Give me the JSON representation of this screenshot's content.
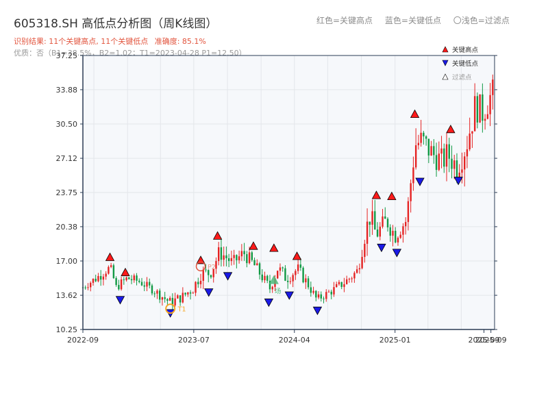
{
  "title": "605318.SH 高低点分析图（周K线图）",
  "header_legend": {
    "red": "红色=关键高点",
    "blue": "蓝色=关键低点",
    "light": "〇浅色=过滤点"
  },
  "subtitle1": {
    "result": "识别结果: 11个关键高点, 11个关键低点",
    "accuracy": "准确度: 85.1%"
  },
  "subtitle2": "优质：否（B1=38.5%，B2=1.02；T1=2023-04-28 P1=12.50）",
  "legend": {
    "high": "关键高点",
    "low": "关键低点",
    "filtered": "过滤点"
  },
  "colors": {
    "up": "#e52222",
    "down": "#119944",
    "high_marker": "#ff1a1a",
    "low_marker": "#1a1ae6",
    "plot_bg": "#f6f8fb",
    "grid": "#e3e6ea",
    "axis": "#2b3c55",
    "t1": "#f5a623",
    "p2": "#e2543d",
    "light_green": "#4cbb7a"
  },
  "chart_data": {
    "type": "candlestick",
    "period": "weekly",
    "y_ticks": [
      "10.25",
      "13.62",
      "17.00",
      "20.38",
      "23.75",
      "27.12",
      "30.50",
      "33.88",
      "37.25"
    ],
    "ylim": [
      10.25,
      37.25
    ],
    "x_ticks": [
      "2022-09",
      "2023-07",
      "2024-04",
      "2025-01",
      "2025-09",
      "2025-09"
    ],
    "xlim": [
      "2022-09-01",
      "2025-09-30"
    ],
    "legend_position": "top-right",
    "grid": true,
    "anchors": [
      [
        "2022-09-01",
        14.4,
        0.3
      ],
      [
        "2022-10-15",
        15.5,
        0.5
      ],
      [
        "2022-11-15",
        16.4,
        0.4
      ],
      [
        "2022-12-01",
        14.4,
        0.4
      ],
      [
        "2023-01-01",
        15.3,
        0.5
      ],
      [
        "2023-02-01",
        15.0,
        0.4
      ],
      [
        "2023-03-10",
        14.2,
        0.4
      ],
      [
        "2023-04-28",
        12.9,
        0.5
      ],
      [
        "2023-06-01",
        13.5,
        0.5
      ],
      [
        "2023-07-01",
        14.4,
        0.6
      ],
      [
        "2023-07-20",
        15.8,
        0.7
      ],
      [
        "2023-08-15",
        15.8,
        0.6
      ],
      [
        "2023-09-10",
        17.9,
        0.8
      ],
      [
        "2023-10-15",
        16.8,
        0.6
      ],
      [
        "2023-11-15",
        17.8,
        0.7
      ],
      [
        "2023-12-15",
        16.5,
        0.6
      ],
      [
        "2024-01-25",
        14.3,
        0.5
      ],
      [
        "2024-02-15",
        16.3,
        0.7
      ],
      [
        "2024-03-10",
        15.3,
        0.6
      ],
      [
        "2024-04-10",
        16.2,
        0.6
      ],
      [
        "2024-05-10",
        14.6,
        0.5
      ],
      [
        "2024-06-01",
        13.2,
        0.4
      ],
      [
        "2024-07-10",
        14.0,
        0.4
      ],
      [
        "2024-08-20",
        15.0,
        0.5
      ],
      [
        "2024-09-20",
        16.0,
        0.6
      ],
      [
        "2024-10-10",
        19.6,
        1.0
      ],
      [
        "2024-10-25",
        21.5,
        1.1
      ],
      [
        "2024-11-10",
        19.6,
        0.9
      ],
      [
        "2024-12-10",
        21.0,
        1.0
      ],
      [
        "2025-01-01",
        19.5,
        0.8
      ],
      [
        "2025-02-01",
        21.0,
        0.7
      ],
      [
        "2025-02-25",
        28.5,
        1.5
      ],
      [
        "2025-03-15",
        28.8,
        1.4
      ],
      [
        "2025-04-15",
        27.5,
        1.2
      ],
      [
        "2025-05-10",
        26.8,
        1.2
      ],
      [
        "2025-05-25",
        27.5,
        1.3
      ],
      [
        "2025-06-20",
        26.3,
        1.2
      ],
      [
        "2025-07-15",
        28.5,
        1.4
      ],
      [
        "2025-08-10",
        32.5,
        1.5
      ],
      [
        "2025-08-25",
        31.5,
        1.5
      ],
      [
        "2025-09-30",
        34.0,
        1.2
      ]
    ],
    "key_highs": [
      {
        "date": "2022-11-14",
        "price": 16.9
      },
      {
        "date": "2022-12-26",
        "price": 15.4
      },
      {
        "date": "2023-07-20",
        "price": 16.6
      },
      {
        "date": "2023-09-04",
        "price": 19.0
      },
      {
        "date": "2023-12-11",
        "price": 18.0
      },
      {
        "date": "2024-02-05",
        "price": 17.8
      },
      {
        "date": "2024-04-08",
        "price": 17.0
      },
      {
        "date": "2024-11-11",
        "price": 23.0
      },
      {
        "date": "2024-12-23",
        "price": 22.9
      },
      {
        "date": "2025-02-24",
        "price": 31.0
      },
      {
        "date": "2025-06-02",
        "price": 29.5
      }
    ],
    "key_lows": [
      {
        "date": "2022-12-12",
        "price": 13.65
      },
      {
        "date": "2023-04-28",
        "price": 12.35
      },
      {
        "date": "2023-08-11",
        "price": 14.4
      },
      {
        "date": "2023-10-02",
        "price": 16.0
      },
      {
        "date": "2024-01-22",
        "price": 13.4
      },
      {
        "date": "2024-03-18",
        "price": 14.1
      },
      {
        "date": "2024-06-03",
        "price": 12.6
      },
      {
        "date": "2024-11-25",
        "price": 18.8
      },
      {
        "date": "2025-01-06",
        "price": 18.3
      },
      {
        "date": "2025-03-10",
        "price": 25.3
      },
      {
        "date": "2025-06-23",
        "price": 25.4
      }
    ],
    "annotations": [
      {
        "label": "T1",
        "date": "2023-04-28",
        "price": 12.5
      },
      {
        "label": "P2",
        "date": "2023-07-20",
        "price": 16.6
      },
      {
        "label": "场",
        "date": "2024-02-05",
        "price": 15.0
      }
    ]
  }
}
